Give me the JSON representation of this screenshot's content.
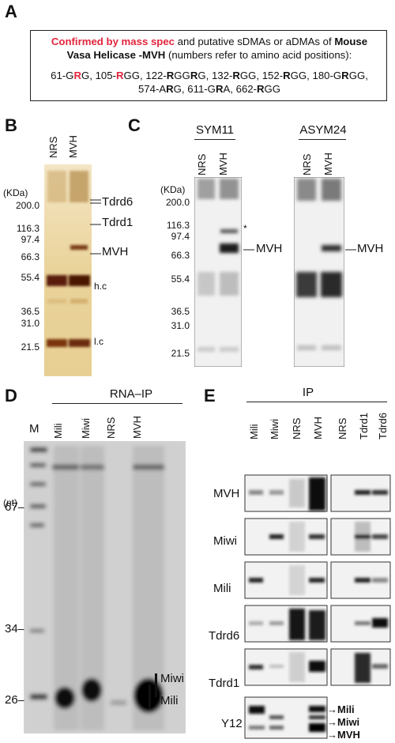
{
  "panelA": {
    "label": "A",
    "line1_red": "Confirmed by mass spec",
    "line1_rest": " and putative sDMAs or aDMAs of ",
    "line1_bold": "Mouse",
    "line2_bold": "Vasa Helicase -MVH",
    "line2_rest": " (numbers refer to amino acid positions):",
    "sites_line1": [
      {
        "pre": "61-G",
        "mark": "R",
        "post": "G, ",
        "red": true
      },
      {
        "pre": "105-",
        "mark": "R",
        "post": "GG, ",
        "red": true
      },
      {
        "pre": "122-",
        "mark": "R",
        "post": "GG",
        "red": false
      },
      {
        "pre": "",
        "mark": "R",
        "post": "G, ",
        "red": false
      },
      {
        "pre": "132-",
        "mark": "R",
        "post": "GG, ",
        "red": false
      },
      {
        "pre": "152-",
        "mark": "R",
        "post": "GG, ",
        "red": false
      },
      {
        "pre": "180-G",
        "mark": "R",
        "post": "GG,",
        "red": false
      }
    ],
    "sites_line2": [
      {
        "pre": "574-A",
        "mark": "R",
        "post": "G, ",
        "red": false
      },
      {
        "pre": "611-G",
        "mark": "R",
        "post": "A, ",
        "red": false
      },
      {
        "pre": "662-",
        "mark": "R",
        "post": "GG",
        "red": false
      }
    ]
  },
  "panelB": {
    "label": "B",
    "lanes": [
      "NRS",
      "MVH"
    ],
    "unit": "(KDa)",
    "markers": [
      "200.0",
      "116.3",
      "97.4",
      "66.3",
      "55.4",
      "36.5",
      "31.0",
      "21.5"
    ],
    "bands": [
      "Tdrd6",
      "Tdrd1",
      "MVH",
      "h.c",
      "l.c"
    ]
  },
  "panelC": {
    "label": "C",
    "blots": [
      {
        "title": "SYM11",
        "lanes": [
          "NRS",
          "MVH"
        ],
        "band": "MVH",
        "star": "*"
      },
      {
        "title": "ASYM24",
        "lanes": [
          "NRS",
          "MVH"
        ],
        "band": "MVH"
      }
    ],
    "unit": "(KDa)",
    "markers": [
      "200.0",
      "116.3",
      "97.4",
      "66.3",
      "55.4",
      "36.5",
      "31.0",
      "21.5"
    ]
  },
  "panelD": {
    "label": "D",
    "title": "RNA–IP",
    "marker_lane": "M",
    "lanes": [
      "Mili",
      "Miwi",
      "NRS",
      "MVH"
    ],
    "unit": "(nt)",
    "sizes": [
      "67",
      "34",
      "26"
    ],
    "bands": [
      "Miwi",
      "Mili"
    ]
  },
  "panelE": {
    "label": "E",
    "title": "IP",
    "lanes_left": [
      "Mili",
      "Miwi",
      "NRS",
      "MVH"
    ],
    "lanes_right": [
      "NRS",
      "Tdrd1",
      "Tdrd6"
    ],
    "rows": [
      "MVH",
      "Miwi",
      "Mili",
      "Tdrd6",
      "Tdrd1",
      "Y12"
    ],
    "y12_bands": [
      "Mili",
      "Miwi",
      "MVH"
    ]
  }
}
